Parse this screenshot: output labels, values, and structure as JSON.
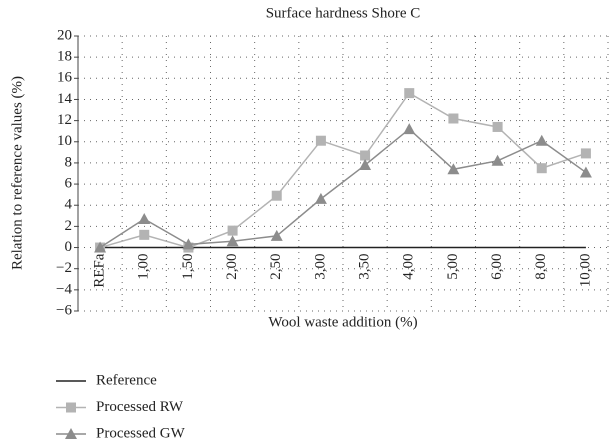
{
  "chart_data": {
    "type": "line",
    "title": "Surface hardness Shore C",
    "x_label": "Wool waste addition (%)",
    "y_label": "Relation to reference values (%)",
    "categories": [
      "REFa",
      "1,00",
      "1,50",
      "2,00",
      "2,50",
      "3,00",
      "3,50",
      "4,00",
      "5,00",
      "6,00",
      "8,00",
      "10,00"
    ],
    "series": [
      {
        "name": "Reference",
        "color": "#222222",
        "marker": "none",
        "values": [
          0,
          0,
          0,
          0,
          0,
          0,
          0,
          0,
          0,
          0,
          0,
          0
        ]
      },
      {
        "name": "Processed RW",
        "color": "#b3b3b3",
        "marker": "square",
        "values": [
          0,
          1.2,
          0,
          1.6,
          4.9,
          10.1,
          8.7,
          14.6,
          12.2,
          11.4,
          7.5,
          8.9
        ]
      },
      {
        "name": "Processed GW",
        "color": "#8c8c8c",
        "marker": "triangle",
        "values": [
          0,
          2.7,
          0.3,
          0.6,
          1.1,
          4.6,
          7.8,
          11.2,
          7.4,
          8.2,
          10.1,
          7.1
        ]
      }
    ],
    "ylim": [
      -6,
      20
    ],
    "yticks": [
      {
        "value": -6,
        "label": "−6"
      },
      {
        "value": -4,
        "label": "−4"
      },
      {
        "value": -2,
        "label": "−2"
      },
      0,
      2,
      4,
      6,
      8,
      10,
      12,
      14,
      16,
      18,
      20
    ],
    "grid": true,
    "legend": "bottom-left"
  }
}
